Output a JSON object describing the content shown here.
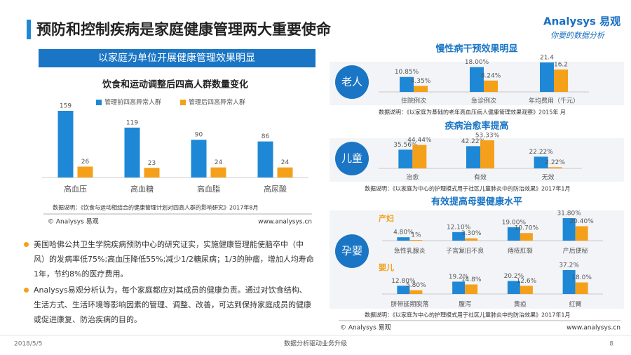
{
  "header": {
    "title": "预防和控制疾病是家庭健康管理两大重要使命",
    "logo": "Analysys 易观",
    "slogan": "你要的数据分析"
  },
  "banner": "以家庭为单位开展健康管理效果明显",
  "row_labels": [
    "老人",
    "儿童",
    "孕婴"
  ],
  "chart_data": [
    {
      "type": "bar",
      "title": "饮食和运动调整后四高人群数量变化",
      "categories": [
        "高血压",
        "高血糖",
        "高血脂",
        "高尿酸"
      ],
      "series": [
        {
          "name": "管理前四高异常人群",
          "color": "#1e88d6",
          "values": [
            159,
            119,
            90,
            86
          ]
        },
        {
          "name": "管理后四高异常人群",
          "color": "#f5a01a",
          "values": [
            26,
            23,
            24,
            24
          ]
        }
      ],
      "note": "数据说明：《饮食与运动相结合的健康管理计划对四高人群的影响研究》2017年8月"
    },
    {
      "type": "bar",
      "title": "慢性病干预效果明显",
      "categories": [
        "住院例次",
        "急诊例次",
        "年均费用（千元）"
      ],
      "series": [
        {
          "color": "#1e88d6",
          "values": [
            10.85,
            18.0,
            21.4
          ],
          "value_labels": [
            "10.85%",
            "18.00%",
            "21.4"
          ]
        },
        {
          "color": "#f5a01a",
          "values": [
            4.35,
            8.24,
            16.2
          ],
          "value_labels": [
            "4.35%",
            "8.24%",
            "16.2"
          ]
        }
      ],
      "note": "数据说明：《以家庭为基础的老年高血压病人健康管理效果观察》2015年 月"
    },
    {
      "type": "bar",
      "title": "疾病治愈率提高",
      "categories": [
        "治愈",
        "有效",
        "无效"
      ],
      "series": [
        {
          "color": "#1e88d6",
          "values": [
            35.56,
            42.22,
            22.22
          ],
          "value_labels": [
            "35.56%",
            "42.22%",
            "22.22%"
          ]
        },
        {
          "color": "#f5a01a",
          "values": [
            44.44,
            53.33,
            2.22
          ],
          "value_labels": [
            "44.44%",
            "53.33%",
            "2.22%"
          ]
        }
      ],
      "note": "数据说明：《以家庭为中心的护理模式用于社区儿童肺炎中的防治效果》2017年1月"
    },
    {
      "type": "bar",
      "title": "有效提高母婴健康水平",
      "subtitle": "产妇",
      "categories": [
        "急性乳腺炎",
        "子宫复旧不良",
        "痔疮肛裂",
        "产后便秘"
      ],
      "series": [
        {
          "color": "#1e88d6",
          "values": [
            4.8,
            12.1,
            19.0,
            31.8
          ],
          "value_labels": [
            "4.80%",
            "12.10%",
            "19.00%",
            "31.80%"
          ]
        },
        {
          "color": "#f5a01a",
          "values": [
            1,
            3.3,
            10.7,
            20.4
          ],
          "value_labels": [
            "1%",
            "3.30%",
            "10.70%",
            "20.40%"
          ]
        }
      ]
    },
    {
      "type": "bar",
      "subtitle": "婴儿",
      "categories": [
        "脐带延期脱落",
        "腹泻",
        "黄疸",
        "红臀"
      ],
      "series": [
        {
          "color": "#1e88d6",
          "values": [
            12.8,
            19.2,
            20.2,
            37.2
          ],
          "value_labels": [
            "12.80%",
            "19.2%",
            "20.2%",
            "37.2%"
          ]
        },
        {
          "color": "#f5a01a",
          "values": [
            5.8,
            14.8,
            12.6,
            18.0
          ],
          "value_labels": [
            "5.80%",
            "14.8%",
            "12.6%",
            "18.0%"
          ]
        }
      ],
      "note": "数据说明：《以家庭为中心的护理模式用于社区儿童肺炎中的防治效果》2017年1月"
    }
  ],
  "credits": {
    "left": [
      "© Analysys 易观",
      "www.analysys.cn"
    ],
    "right": [
      "© Analysys 易观",
      "www.analysys.cn"
    ]
  },
  "bullets": [
    "美国哈佛公共卫生学院疾病预防中心的研究证实，实施健康管理能使脑卒中（中风）的发病率低75%;高血压降低55%;减少1/2糖尿病；1/3的肿瘤，增加人均寿命1年，节约8%的医疗费用。",
    "Analysys易观分析认为，每个家庭都应对其成员的健康负责。通过对饮食结构、生活方式、生活环境等影响因素的管理、调整、改善，可达到保持家庭成员的健康或促进康复、防治疾病的目的。"
  ],
  "footer": {
    "date": "2018/5/5",
    "slogan": "数据分析驱动业务升级",
    "page": "8"
  }
}
